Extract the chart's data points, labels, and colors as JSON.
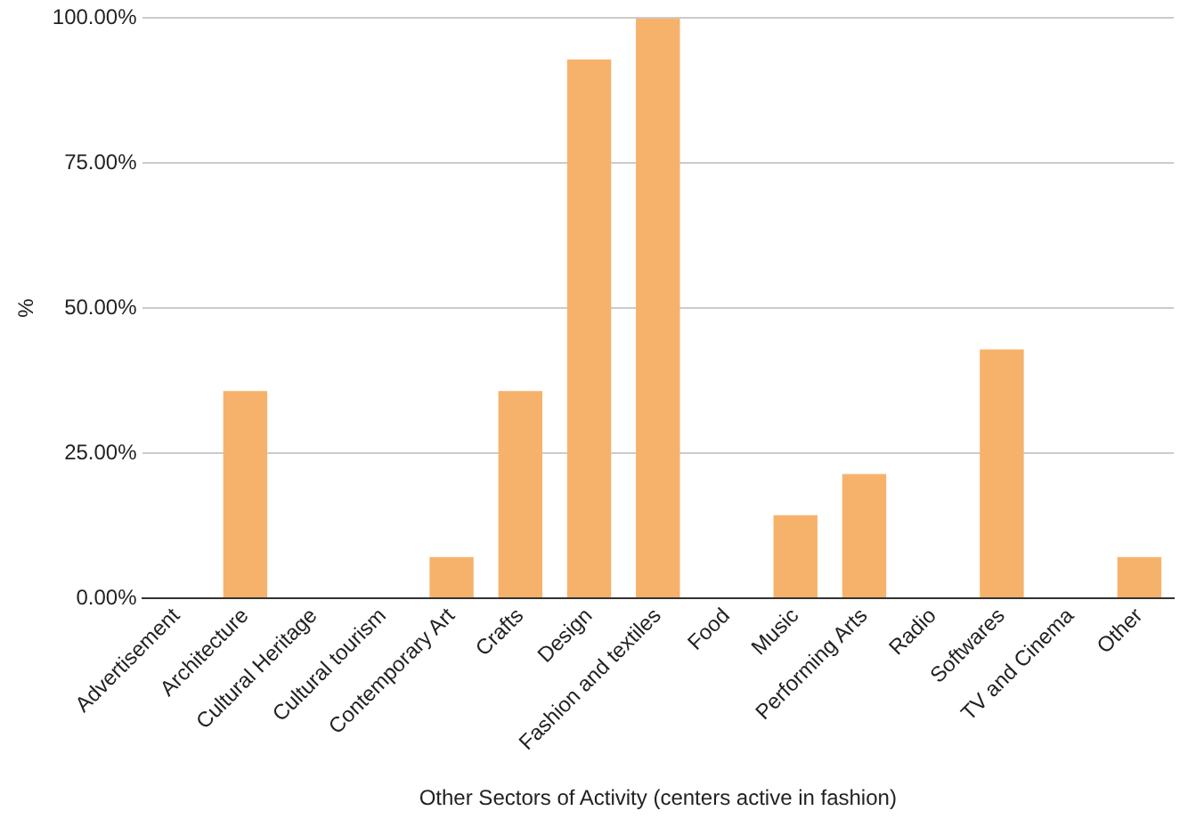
{
  "chart_data": {
    "type": "bar",
    "xlabel": "Other Sectors of Activity (centers active in fashion)",
    "ylabel": "%",
    "categories": [
      "Advertisement",
      "Architecture",
      "Cultural Heritage",
      "Cultural tourism",
      "Contemporary Art",
      "Crafts",
      "Design",
      "Fashion and textiles",
      "Food",
      "Music",
      "Performing Arts",
      "Radio",
      "Softwares",
      "TV and Cinema",
      "Other"
    ],
    "values": [
      0,
      35.7,
      0,
      0,
      7.1,
      35.7,
      92.9,
      100,
      0,
      14.3,
      21.4,
      0,
      42.9,
      0,
      7.1
    ],
    "color": "#f6b26b",
    "ylim": [
      0,
      100
    ],
    "yticks": [
      {
        "value": 0,
        "label": "0.00%"
      },
      {
        "value": 25,
        "label": "25.00%"
      },
      {
        "value": 50,
        "label": "50.00%"
      },
      {
        "value": 75,
        "label": "75.00%"
      },
      {
        "value": 100,
        "label": "100.00%"
      }
    ],
    "grid": "y",
    "legend": false
  }
}
